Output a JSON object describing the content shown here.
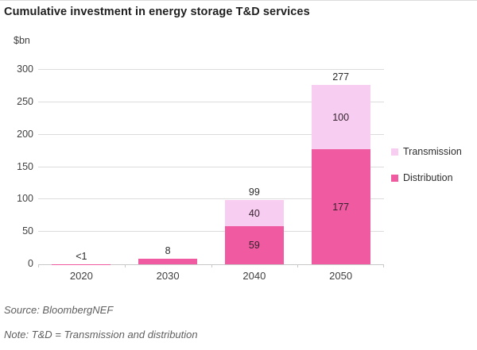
{
  "header": {
    "title": "Cumulative investment in energy storage T&D services",
    "unit_label": "$bn"
  },
  "legend": {
    "items": [
      {
        "label": "Transmission",
        "color": "#F8CDF2"
      },
      {
        "label": "Distribution",
        "color": "#F05AA0"
      }
    ]
  },
  "footer": {
    "source": "Source: BloombergNEF",
    "note": "Note: T&D = Transmission and distribution"
  },
  "colors": {
    "transmission": "#F8CDF2",
    "distribution": "#F05AA0",
    "gridline": "#dcdcdc",
    "axis": "#c8c8c8"
  },
  "chart_data": {
    "type": "bar",
    "stacked": true,
    "title": "Cumulative investment in energy storage T&D services",
    "ylabel": "$bn",
    "xlabel": "",
    "categories": [
      "2020",
      "2030",
      "2040",
      "2050"
    ],
    "series": [
      {
        "name": "Distribution",
        "color": "#F05AA0",
        "values": [
          0.5,
          8,
          59,
          177
        ],
        "segment_labels": [
          "",
          "",
          "59",
          "177"
        ]
      },
      {
        "name": "Transmission",
        "color": "#F8CDF2",
        "values": [
          0,
          0,
          40,
          100
        ],
        "segment_labels": [
          "",
          "",
          "40",
          "100"
        ]
      }
    ],
    "total_labels": [
      "<1",
      "8",
      "99",
      "277"
    ],
    "totals": [
      1,
      8,
      99,
      277
    ],
    "ylim": [
      0,
      300
    ],
    "yticks": [
      0,
      50,
      100,
      150,
      200,
      250,
      300
    ],
    "grid": "horizontal-only",
    "legend_position": "right"
  }
}
